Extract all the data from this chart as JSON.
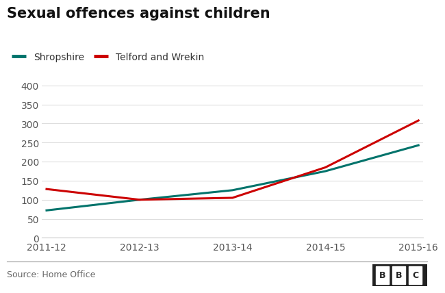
{
  "title": "Sexual offences against children",
  "x_labels": [
    "2011-12",
    "2012-13",
    "2013-14",
    "2014-15",
    "2015-16"
  ],
  "shropshire_values": [
    72,
    100,
    125,
    175,
    243
  ],
  "telford_values": [
    128,
    100,
    105,
    185,
    308
  ],
  "shropshire_color": "#00736b",
  "telford_color": "#cc0000",
  "shropshire_label": "Shropshire",
  "telford_label": "Telford and Wrekin",
  "ylim": [
    0,
    400
  ],
  "yticks": [
    0,
    50,
    100,
    150,
    200,
    250,
    300,
    350,
    400
  ],
  "background_color": "#ffffff",
  "grid_color": "#dddddd",
  "source_text": "Source: Home Office",
  "title_fontsize": 15,
  "label_fontsize": 10,
  "tick_fontsize": 10,
  "line_width": 2.2
}
